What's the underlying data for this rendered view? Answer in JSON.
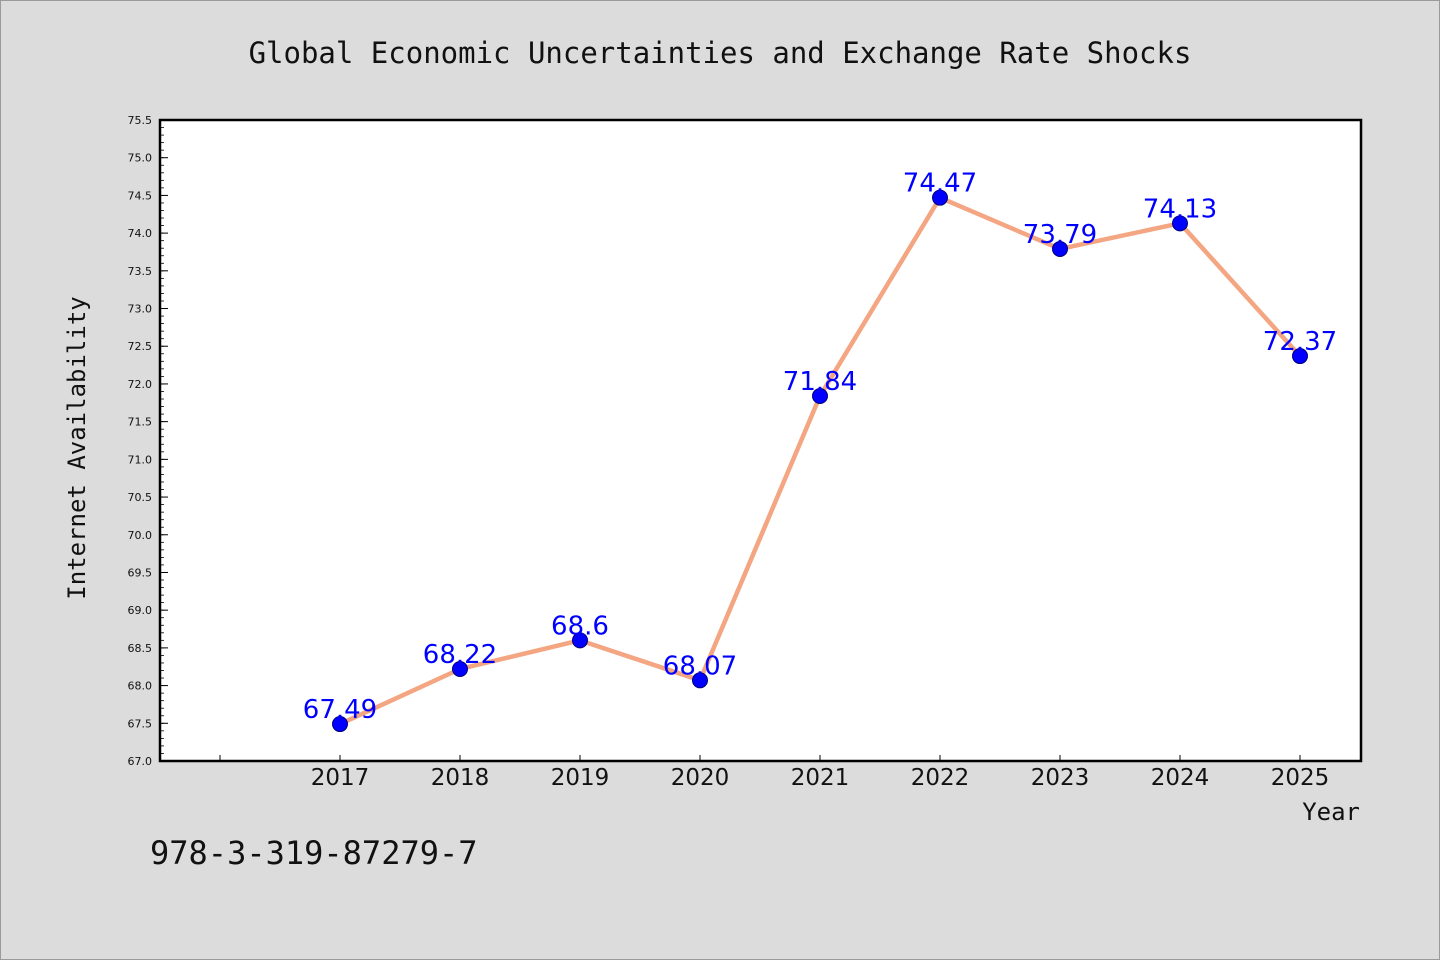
{
  "chart_data": {
    "type": "line",
    "title": "Global Economic Uncertainties and Exchange Rate Shocks",
    "xlabel": "Year",
    "ylabel": "Internet Availability",
    "categories": [
      "2017",
      "2018",
      "2019",
      "2020",
      "2021",
      "2022",
      "2023",
      "2024",
      "2025"
    ],
    "series": [
      {
        "values": [
          67.49,
          68.22,
          68.6,
          68.07,
          71.84,
          74.47,
          73.79,
          74.13,
          72.37
        ],
        "labels": [
          "67.49",
          "68.22",
          "68.6",
          "68.07",
          "71.84",
          "74.47",
          "73.79",
          "74.13",
          "72.37"
        ],
        "line_color": "#f4a582",
        "marker_color": "#0000ff"
      }
    ],
    "ylim": [
      67.0,
      75.5
    ],
    "yticks": [
      "67.0",
      "67.5",
      "68.0",
      "68.5",
      "69.0",
      "69.5",
      "70.0",
      "70.5",
      "71.0",
      "71.5",
      "72.0",
      "72.5",
      "73.0",
      "73.5",
      "74.0",
      "74.5",
      "75.0",
      "75.5"
    ],
    "grid": false,
    "legend": "none"
  },
  "footer": {
    "isbn": "978-3-319-87279-7"
  },
  "colors": {
    "background": "#dcdcdc",
    "plot_background": "#ffffff",
    "line": "#f4a582",
    "marker": "#0000ff",
    "data_label": "#0000ff"
  }
}
